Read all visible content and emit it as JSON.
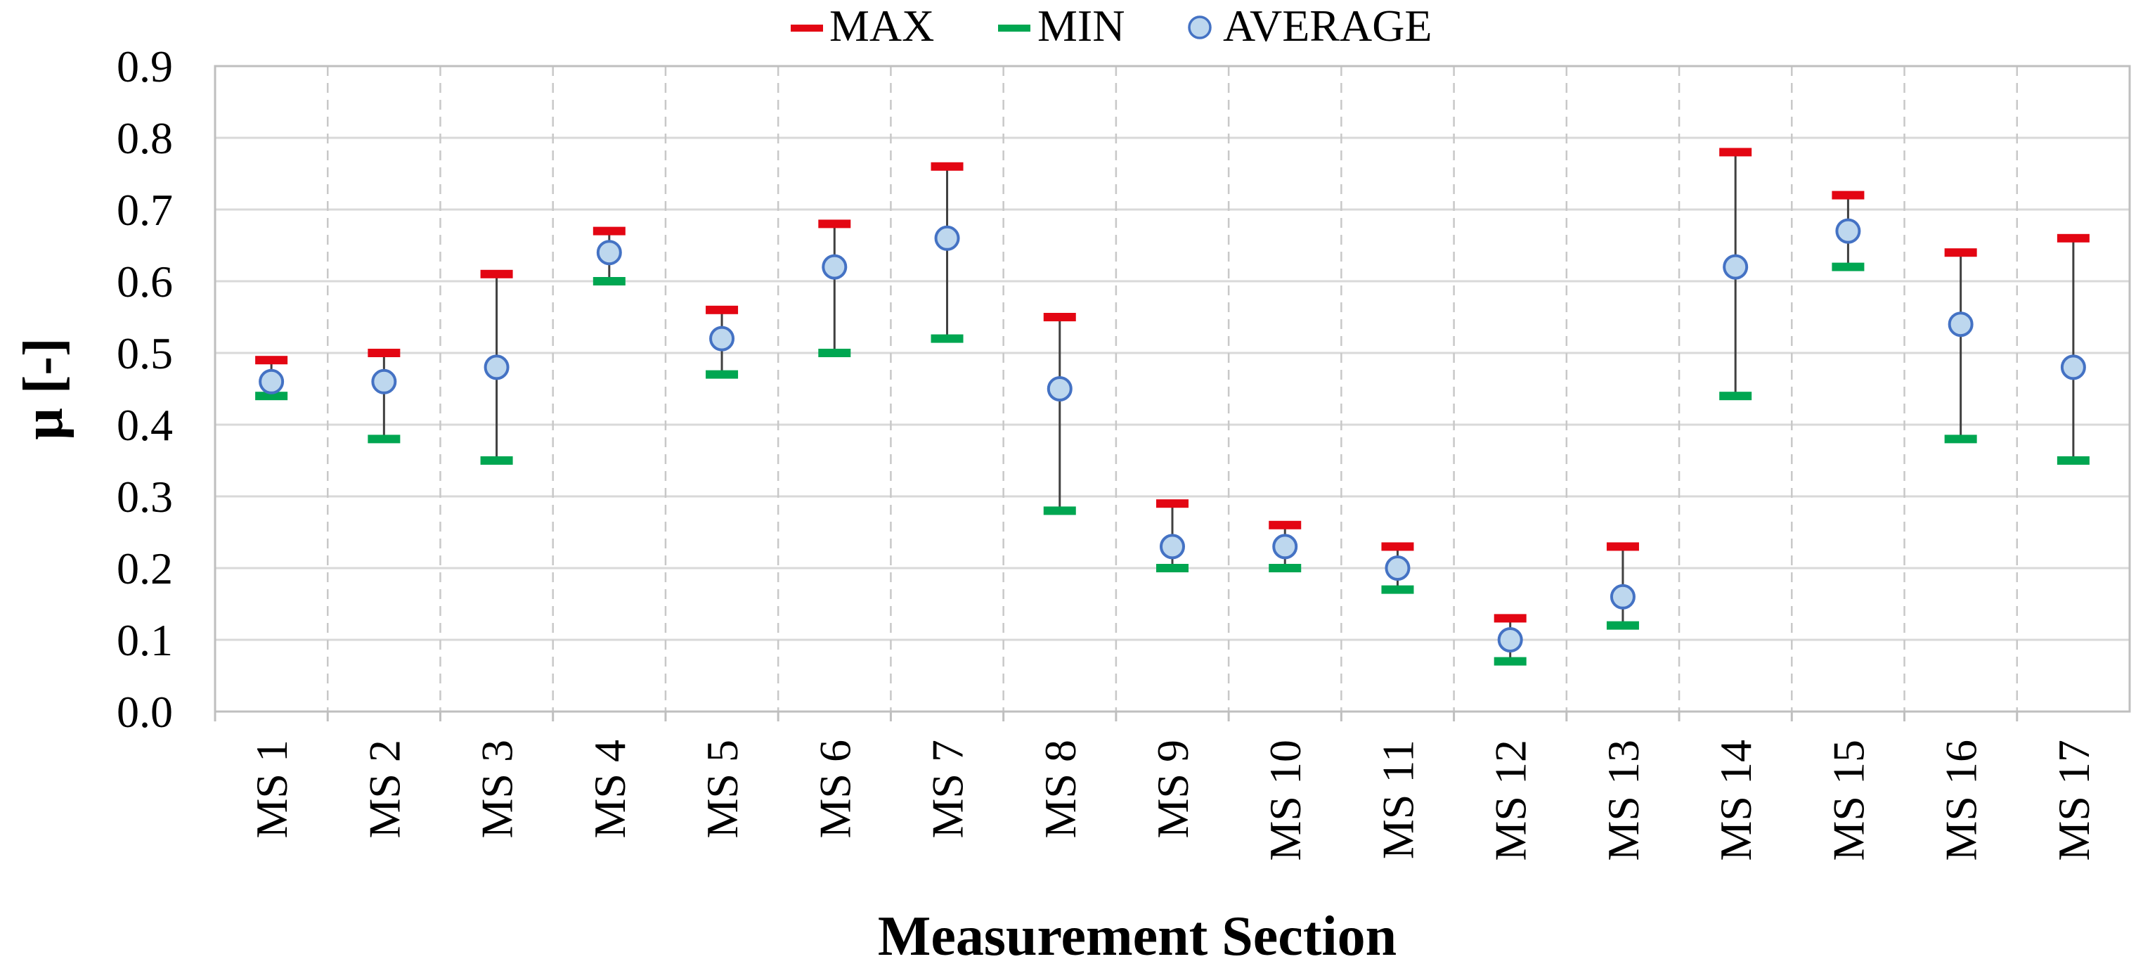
{
  "chart_data": {
    "type": "scatter",
    "title": "",
    "xlabel": "Measurement Section",
    "ylabel": "μ [-]",
    "ylim": [
      0,
      0.9
    ],
    "yticks": [
      "0.0",
      "0.1",
      "0.2",
      "0.3",
      "0.4",
      "0.5",
      "0.6",
      "0.7",
      "0.8",
      "0.9"
    ],
    "grid": true,
    "legend_position": "top-center",
    "categories": [
      "MS 1",
      "MS 2",
      "MS 3",
      "MS 4",
      "MS 5",
      "MS 6",
      "MS 7",
      "MS 8",
      "MS 9",
      "MS 10",
      "MS 11",
      "MS 12",
      "MS 13",
      "MS 14",
      "MS 15",
      "MS 16",
      "MS 17"
    ],
    "series": [
      {
        "name": "MAX",
        "color": "#e30613",
        "values": [
          0.49,
          0.5,
          0.61,
          0.67,
          0.56,
          0.68,
          0.76,
          0.55,
          0.29,
          0.26,
          0.23,
          0.13,
          0.23,
          0.78,
          0.72,
          0.64,
          0.66
        ]
      },
      {
        "name": "MIN",
        "color": "#00a651",
        "values": [
          0.44,
          0.38,
          0.35,
          0.6,
          0.47,
          0.5,
          0.52,
          0.28,
          0.2,
          0.2,
          0.17,
          0.07,
          0.12,
          0.44,
          0.62,
          0.38,
          0.35
        ]
      },
      {
        "name": "AVERAGE",
        "color": "#bdd7ee",
        "edge_color": "#4472c4",
        "values": [
          0.46,
          0.46,
          0.48,
          0.64,
          0.52,
          0.62,
          0.66,
          0.45,
          0.23,
          0.23,
          0.2,
          0.1,
          0.16,
          0.62,
          0.67,
          0.54,
          0.48
        ]
      }
    ]
  }
}
